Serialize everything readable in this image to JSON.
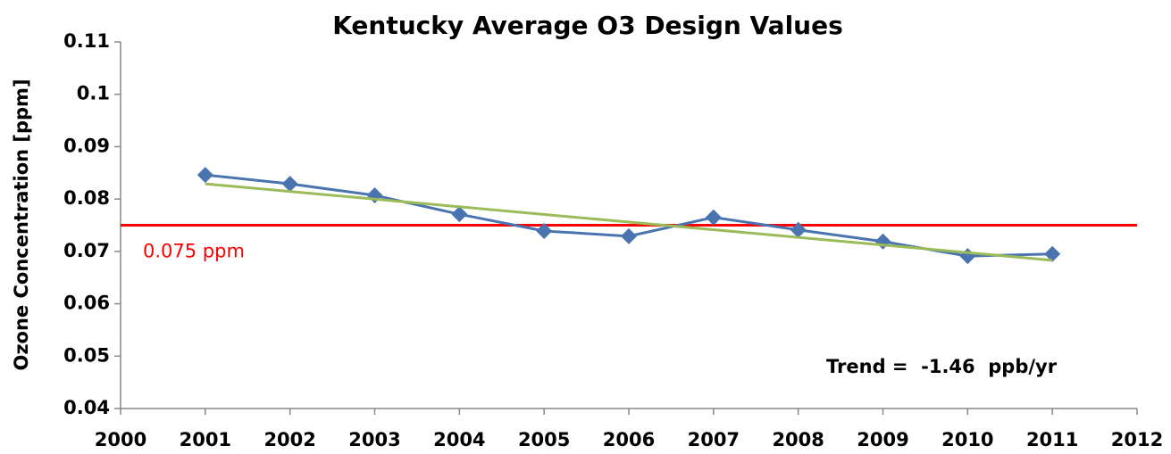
{
  "chart_data": {
    "type": "line",
    "title": "Kentucky Average O3 Design Values",
    "ylabel": "Ozone Concentration [ppm]",
    "x": [
      2001,
      2002,
      2003,
      2004,
      2005,
      2006,
      2007,
      2008,
      2009,
      2010,
      2011
    ],
    "series": [
      {
        "color": "#4a74b0",
        "marker": "diamond",
        "values": [
          0.0846,
          0.0829,
          0.0807,
          0.0771,
          0.0739,
          0.0729,
          0.0765,
          0.0741,
          0.0719,
          0.0691,
          0.0695
        ]
      }
    ],
    "trend": {
      "color": "#9bbb59",
      "x": [
        2001,
        2011
      ],
      "values": [
        0.0829,
        0.0683
      ]
    },
    "reference": {
      "value": 0.075,
      "label": "0.075 ppm",
      "color": "#ff0000"
    },
    "annotation": "Trend =  -1.46  ppb/yr",
    "xlim": [
      2000,
      2012
    ],
    "xticks": [
      2000,
      2001,
      2002,
      2003,
      2004,
      2005,
      2006,
      2007,
      2008,
      2009,
      2010,
      2011,
      2012
    ],
    "ylim": [
      0.04,
      0.11
    ],
    "yticks": [
      0.04,
      0.05,
      0.06,
      0.07,
      0.08,
      0.09,
      0.1,
      0.11
    ],
    "grid": false
  }
}
